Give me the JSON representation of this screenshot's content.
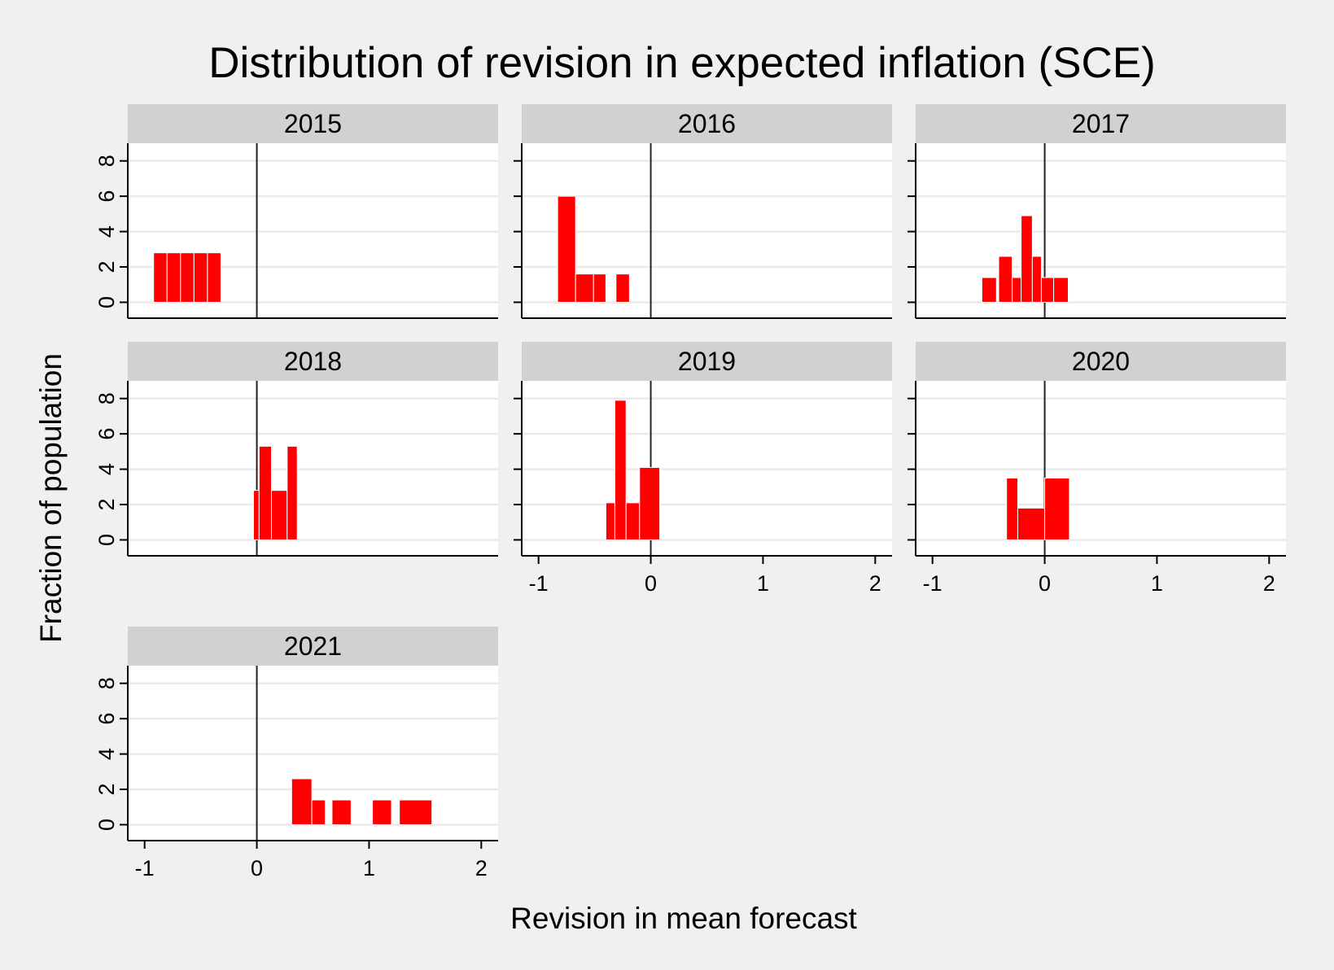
{
  "chart_data": {
    "type": "bar",
    "title": "Distribution of revision in expected inflation (SCE)",
    "xlabel": "Revision in mean forecast",
    "ylabel": "Fraction of population",
    "xlim": [
      -1.15,
      2.15
    ],
    "xticks": [
      "-1",
      "0",
      "1",
      "2"
    ],
    "ylim": [
      -0.9,
      9
    ],
    "yticks": [
      "0",
      "2",
      "4",
      "6",
      "8"
    ],
    "reference_line_x": 0,
    "bar_color": "#ff0000",
    "strip_color": "#d1d1d1",
    "grid": true,
    "panels": [
      {
        "label": "2015",
        "bars": [
          {
            "x0": -0.92,
            "x1": -0.8,
            "y": 2.8
          },
          {
            "x0": -0.8,
            "x1": -0.68,
            "y": 2.8
          },
          {
            "x0": -0.68,
            "x1": -0.56,
            "y": 2.8
          },
          {
            "x0": -0.56,
            "x1": -0.44,
            "y": 2.8
          },
          {
            "x0": -0.44,
            "x1": -0.32,
            "y": 2.8
          }
        ]
      },
      {
        "label": "2016",
        "bars": [
          {
            "x0": -0.83,
            "x1": -0.67,
            "y": 6.0
          },
          {
            "x0": -0.67,
            "x1": -0.51,
            "y": 1.6
          },
          {
            "x0": -0.51,
            "x1": -0.4,
            "y": 1.6
          },
          {
            "x0": -0.31,
            "x1": -0.19,
            "y": 1.6
          }
        ]
      },
      {
        "label": "2017",
        "bars": [
          {
            "x0": -0.56,
            "x1": -0.43,
            "y": 1.4
          },
          {
            "x0": -0.41,
            "x1": -0.29,
            "y": 2.6
          },
          {
            "x0": -0.29,
            "x1": -0.21,
            "y": 1.4
          },
          {
            "x0": -0.21,
            "x1": -0.11,
            "y": 4.9
          },
          {
            "x0": -0.11,
            "x1": -0.03,
            "y": 2.6
          },
          {
            "x0": -0.03,
            "x1": 0.08,
            "y": 1.4
          },
          {
            "x0": 0.08,
            "x1": 0.21,
            "y": 1.4
          }
        ]
      },
      {
        "label": "2018",
        "bars": [
          {
            "x0": -0.03,
            "x1": 0.02,
            "y": 2.8
          },
          {
            "x0": 0.02,
            "x1": 0.13,
            "y": 5.3
          },
          {
            "x0": 0.13,
            "x1": 0.27,
            "y": 2.8
          },
          {
            "x0": 0.27,
            "x1": 0.36,
            "y": 5.3
          }
        ]
      },
      {
        "label": "2019",
        "bars": [
          {
            "x0": -0.4,
            "x1": -0.32,
            "y": 2.1
          },
          {
            "x0": -0.32,
            "x1": -0.22,
            "y": 7.9
          },
          {
            "x0": -0.22,
            "x1": -0.1,
            "y": 2.1
          },
          {
            "x0": -0.1,
            "x1": 0.08,
            "y": 4.1
          }
        ]
      },
      {
        "label": "2020",
        "bars": [
          {
            "x0": -0.34,
            "x1": -0.24,
            "y": 3.5
          },
          {
            "x0": -0.24,
            "x1": 0.0,
            "y": 1.8
          },
          {
            "x0": 0.0,
            "x1": 0.22,
            "y": 3.5
          }
        ]
      },
      {
        "label": "2021",
        "bars": [
          {
            "x0": 0.31,
            "x1": 0.49,
            "y": 2.6
          },
          {
            "x0": 0.49,
            "x1": 0.61,
            "y": 1.4
          },
          {
            "x0": 0.67,
            "x1": 0.84,
            "y": 1.4
          },
          {
            "x0": 1.03,
            "x1": 1.2,
            "y": 1.4
          },
          {
            "x0": 1.27,
            "x1": 1.56,
            "y": 1.4
          }
        ]
      }
    ]
  }
}
